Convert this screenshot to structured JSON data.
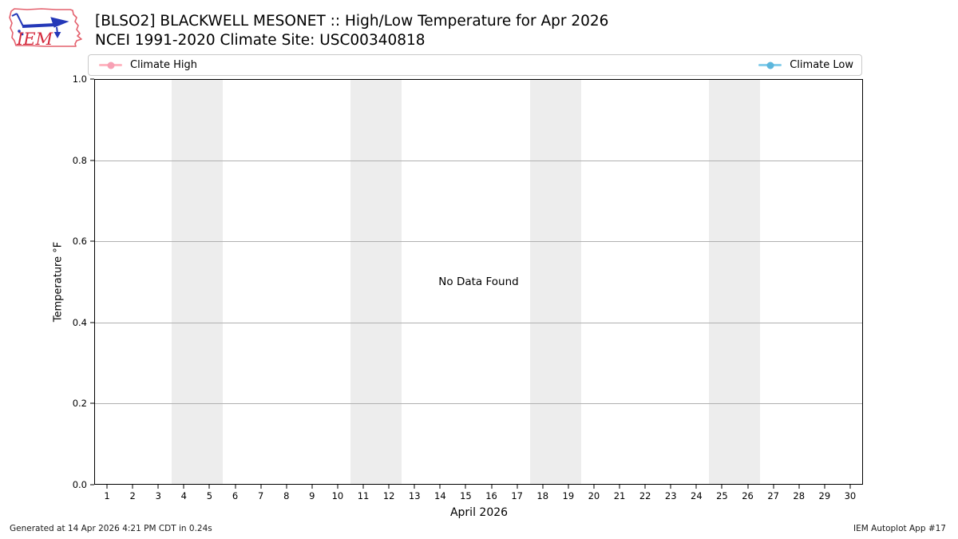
{
  "header": {
    "title": "[BLSO2] BLACKWELL MESONET :: High/Low Temperature for Apr 2026",
    "subtitle": "NCEI 1991-2020 Climate Site: USC00340818",
    "logo_text": "IEM"
  },
  "legend": {
    "items": [
      {
        "label": "Climate High",
        "line_color": "#ffb6c1",
        "dot_color": "#f7a0b4"
      },
      {
        "label": "Climate Low",
        "line_color": "#87ceeb",
        "dot_color": "#5cb6dc"
      }
    ]
  },
  "chart_data": {
    "type": "line",
    "title": "[BLSO2] BLACKWELL MESONET :: High/Low Temperature for Apr 2026",
    "subtitle": "NCEI 1991-2020 Climate Site: USC00340818",
    "xlabel": "April 2026",
    "ylabel": "Temperature °F",
    "xlim": [
      0.5,
      30.5
    ],
    "ylim": [
      0.0,
      1.0
    ],
    "x_ticks": [
      1,
      2,
      3,
      4,
      5,
      6,
      7,
      8,
      9,
      10,
      11,
      12,
      13,
      14,
      15,
      16,
      17,
      18,
      19,
      20,
      21,
      22,
      23,
      24,
      25,
      26,
      27,
      28,
      29,
      30
    ],
    "y_ticks": [
      "0.0",
      "0.2",
      "0.4",
      "0.6",
      "0.8",
      "1.0"
    ],
    "y_gridlines": [
      0.2,
      0.4,
      0.6,
      0.8
    ],
    "grid": "horizontal",
    "legend_position": "top, spanning plot width (high left, low right)",
    "weekend_bands": [
      [
        3.5,
        5.5
      ],
      [
        10.5,
        12.5
      ],
      [
        17.5,
        19.5
      ],
      [
        24.5,
        26.5
      ]
    ],
    "band_color": "#ededed",
    "series": [
      {
        "name": "Climate High",
        "color": "#ffb6c1",
        "values": []
      },
      {
        "name": "Climate Low",
        "color": "#87ceeb",
        "values": []
      }
    ],
    "no_data_message": "No Data Found"
  },
  "footer": {
    "left": "Generated at 14 Apr 2026 4:21 PM CDT in 0.24s",
    "right": "IEM Autoplot App #17"
  }
}
